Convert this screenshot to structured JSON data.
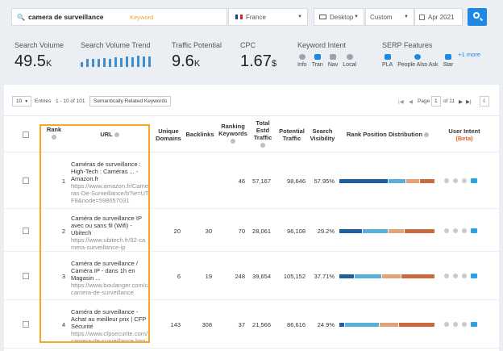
{
  "search": {
    "query": "camera de surveillance",
    "tag": "Keyword",
    "country": "France",
    "device": "Desktop",
    "period": "Custom",
    "date": "Apr 2021"
  },
  "metrics": {
    "search_volume": {
      "label": "Search Volume",
      "value": "49.5",
      "unit": "K"
    },
    "trend": {
      "label": "Search Volume Trend",
      "bars": [
        0.45,
        0.7,
        0.75,
        0.7,
        0.8,
        0.75,
        0.85,
        0.8,
        0.9,
        0.85,
        1.0,
        0.95,
        0.9
      ]
    },
    "traffic_potential": {
      "label": "Traffic Potential",
      "value": "9.6",
      "unit": "K"
    },
    "cpc": {
      "label": "CPC",
      "value": "1.67",
      "unit": "$"
    },
    "intent": {
      "label": "Keyword Intent",
      "items": [
        "Info",
        "Tran",
        "Nav",
        "Local"
      ]
    },
    "serp": {
      "label": "SERP Features",
      "items": [
        "PLA",
        "People Also Ask",
        "Star"
      ],
      "more": "+1 more"
    }
  },
  "controls": {
    "per_page": "10",
    "entries": "Entries",
    "range": "1 - 10 of 101",
    "related": "Semantically Related Keywords",
    "page_label": "Page",
    "page": "1",
    "of": "of 11"
  },
  "headers": {
    "rank": "Rank",
    "url": "URL",
    "unique": "Unique Domains",
    "backlinks": "Backlinks",
    "ranking": "Ranking Keywords",
    "total": "Total Estd Traffic",
    "potential": "Potential Traffic",
    "visibility": "Search Visibility",
    "dist": "Rank Position Distribution",
    "intent": "User Intent",
    "beta": "(Beta)"
  },
  "colors": {
    "c1": "#1f5f9e",
    "c2": "#57b0d8",
    "c3": "#e3a27a",
    "c4": "#cc6a3f"
  },
  "rows": [
    {
      "rank": "1",
      "title": "Caméras de surveillance : High-Tech : Caméras ... - Amazon.fr",
      "url": "https://www.amazon.fr/Cameras-De-Surveillance/b?ie=UTF8&node=598657031",
      "unique": "",
      "backlinks": "",
      "ranking": "46",
      "total": "57,167",
      "potential": "98,646",
      "visibility": "57.95%",
      "dist": [
        0.52,
        0.18,
        0.14,
        0.16
      ]
    },
    {
      "rank": "2",
      "title": "Caméra de surveillance IP avec ou sans fil (Wifi) - Ubitech",
      "url": "https://www.ubitech.fr/92-camera-surveillance-ip",
      "unique": "20",
      "backlinks": "30",
      "ranking": "70",
      "total": "28,061",
      "potential": "96,108",
      "visibility": "29.2%",
      "dist": [
        0.24,
        0.27,
        0.17,
        0.32
      ]
    },
    {
      "rank": "3",
      "title": "Caméra de surveillance / Caméra IP - dans 1h en Magasin ...",
      "url": "https://www.boulanger.com/c/camera-de-surveillance",
      "unique": "6",
      "backlinks": "19",
      "ranking": "248",
      "total": "39,654",
      "potential": "105,152",
      "visibility": "37.71%",
      "dist": [
        0.16,
        0.28,
        0.2,
        0.36
      ]
    },
    {
      "rank": "4",
      "title": "Caméra de surveillance - Achat au meilleur prix | CFP Sécurité",
      "url": "https://www.cfpsecurite.com/camera-de-surveillance.htm",
      "unique": "143",
      "backlinks": "308",
      "ranking": "37",
      "total": "21,566",
      "potential": "86,616",
      "visibility": "24.9%",
      "dist": [
        0.05,
        0.37,
        0.2,
        0.38
      ]
    }
  ]
}
